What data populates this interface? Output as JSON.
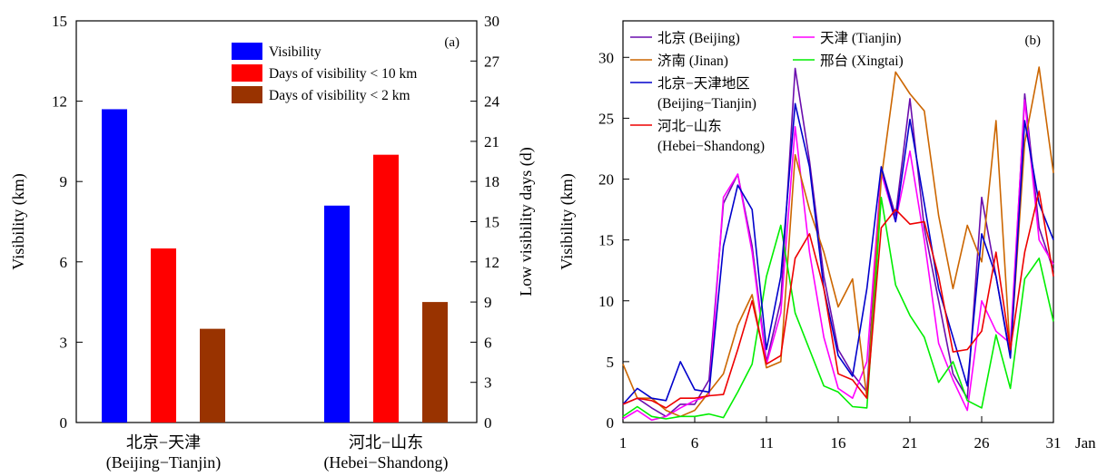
{
  "chart_data": [
    {
      "type": "bar",
      "panel_label": "(a)",
      "categories": [
        {
          "label": "北京−天津",
          "sublabel": "(Beijing−Tianjin)"
        },
        {
          "label": "河北−山东",
          "sublabel": "(Hebei−Shandong)"
        }
      ],
      "series": [
        {
          "name": "Visibility",
          "axis": "left",
          "color": "#0000ff",
          "values": [
            11.7,
            8.1
          ]
        },
        {
          "name": "Days of visibility < 10 km",
          "axis": "right",
          "color": "#ff0000",
          "values": [
            13,
            20
          ]
        },
        {
          "name": "Days of visibility < 2 km",
          "axis": "right",
          "color": "#993300",
          "values": [
            7,
            9
          ]
        }
      ],
      "ylabel": "Visibility (km)",
      "ylim": [
        0,
        15
      ],
      "yticks": [
        0,
        3,
        6,
        9,
        12,
        15
      ],
      "y2label": "Low visibility days (d)",
      "y2lim": [
        0,
        30
      ],
      "y2ticks": [
        0,
        3,
        6,
        9,
        12,
        15,
        18,
        21,
        24,
        27,
        30
      ],
      "legend_position": "top-right",
      "grid": false
    },
    {
      "type": "line",
      "panel_label": "(b)",
      "x": [
        1,
        2,
        3,
        4,
        5,
        6,
        7,
        8,
        9,
        10,
        11,
        12,
        13,
        14,
        15,
        16,
        17,
        18,
        19,
        20,
        21,
        22,
        23,
        24,
        25,
        26,
        27,
        28,
        29,
        30,
        31
      ],
      "xticks": [
        1,
        6,
        11,
        16,
        21,
        26,
        31
      ],
      "xunit_label": "Jan",
      "ylabel": "Visibility (km)",
      "ylim": [
        0,
        33
      ],
      "yticks": [
        0,
        5,
        10,
        15,
        20,
        25,
        30
      ],
      "legend_position": "top-left",
      "grid": false,
      "series": [
        {
          "name": "北京 (Beijing)",
          "color": "#6a0dad",
          "values": [
            1.5,
            2.0,
            1.2,
            0.5,
            1.5,
            1.5,
            3.5,
            18.0,
            20.4,
            14.5,
            5.0,
            10.0,
            29.1,
            21.5,
            12.0,
            6.0,
            4.0,
            2.5,
            21.0,
            17.0,
            26.6,
            16.0,
            10.0,
            4.0,
            2.0,
            18.5,
            12.0,
            5.5,
            27.0,
            16.0,
            12.5
          ]
        },
        {
          "name": "天津 (Tianjin)",
          "color": "#ff00ff",
          "values": [
            0.3,
            1.0,
            0.2,
            0.5,
            1.2,
            1.8,
            2.2,
            18.5,
            20.4,
            14.0,
            4.8,
            9.0,
            24.3,
            14.0,
            7.0,
            2.8,
            2.0,
            5.0,
            20.5,
            16.5,
            22.3,
            15.0,
            6.5,
            3.5,
            1.0,
            10.0,
            7.5,
            6.5,
            26.5,
            15.0,
            13.0
          ]
        },
        {
          "name": "济南 (Jinan)",
          "color": "#cc6600",
          "values": [
            4.8,
            2.0,
            2.0,
            1.0,
            0.5,
            1.0,
            2.5,
            4.0,
            8.0,
            10.5,
            4.5,
            5.0,
            22.0,
            17.5,
            14.0,
            9.5,
            11.8,
            2.0,
            20.0,
            28.8,
            27.0,
            25.6,
            17.0,
            11.0,
            16.2,
            13.2,
            24.8,
            5.5,
            23.0,
            29.2,
            20.5
          ]
        },
        {
          "name": "邢台 (Xingtai)",
          "color": "#00ee00",
          "values": [
            0.5,
            1.3,
            0.5,
            0.3,
            0.5,
            0.5,
            0.7,
            0.4,
            2.5,
            4.8,
            12.0,
            16.2,
            9.0,
            6.0,
            3.0,
            2.5,
            1.3,
            1.2,
            18.5,
            11.3,
            8.8,
            7.0,
            3.3,
            5.0,
            1.8,
            1.2,
            7.2,
            2.8,
            11.8,
            13.5,
            8.3
          ]
        },
        {
          "name": "北京−天津地区 (Beijing−Tianjin)",
          "color": "#0000cc",
          "values": [
            1.5,
            2.8,
            2.0,
            1.8,
            5.0,
            2.7,
            2.5,
            14.5,
            19.5,
            17.5,
            6.0,
            12.0,
            26.2,
            21.0,
            11.0,
            5.5,
            3.8,
            11.0,
            21.0,
            16.5,
            24.9,
            18.0,
            11.0,
            7.0,
            3.0,
            15.5,
            12.0,
            5.3,
            24.8,
            18.0,
            15.0
          ]
        },
        {
          "name": "河北−山东 (Hebei−Shandong)",
          "color": "#ee0000",
          "values": [
            1.5,
            2.0,
            1.8,
            1.2,
            2.0,
            2.0,
            2.2,
            2.3,
            6.0,
            10.0,
            4.8,
            5.5,
            13.5,
            15.5,
            11.0,
            4.0,
            3.5,
            2.0,
            16.0,
            17.5,
            16.3,
            16.5,
            12.0,
            5.8,
            6.0,
            7.5,
            14.0,
            6.0,
            14.0,
            19.0,
            12.0
          ]
        }
      ]
    }
  ]
}
